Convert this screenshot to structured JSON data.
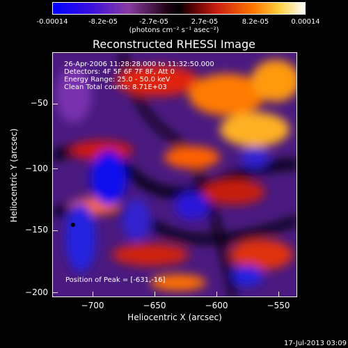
{
  "colorbar": {
    "tick_labels": [
      "-0.00014",
      "-8.2e-05",
      "-2.7e-05",
      "2.7e-05",
      "8.2e-05",
      "0.00014"
    ],
    "units": "(photons cm⁻² s⁻¹ asec⁻²)"
  },
  "title": "Reconstructed RHESSI Image",
  "info_lines": [
    "26-Apr-2006 11:28:28.000 to 11:32:50.000",
    "Detectors: 4F 5F 6F 7F 8F, Att 0",
    "Energy Range: 25.0 - 50.0 keV",
    "Clean     Total counts: 8.71E+03"
  ],
  "peak_label": "Position of Peak = [-631,-16]",
  "axes": {
    "xlabel": "Heliocentric X (arcsec)",
    "ylabel": "Heliocentric Y (arcsec)",
    "xticks": [
      "−700",
      "−650",
      "−600",
      "−550"
    ],
    "yticks": [
      "−50",
      "−100",
      "−150",
      "−200"
    ]
  },
  "timestamp": "17-Jul-2013 03:09",
  "colors": {
    "low": "#0000ff",
    "mid_low": "#6a2fb0",
    "zero": "#000000",
    "mid_high": "#c81e10",
    "high": "#ffaa00",
    "max": "#ffffff"
  }
}
